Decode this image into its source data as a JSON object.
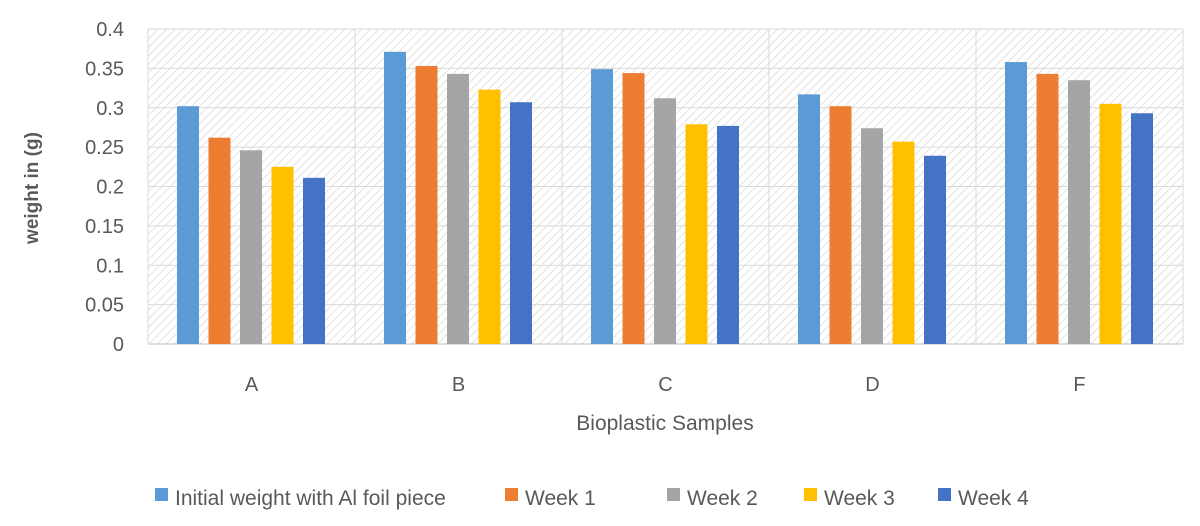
{
  "chart_data": {
    "type": "bar",
    "title": "",
    "xlabel": "Bioplastic Samples",
    "ylabel": "weight in (g)",
    "ylim": [
      0,
      0.4
    ],
    "yticks": [
      "0",
      "0.05",
      "0.1",
      "0.15",
      "0.2",
      "0.25",
      "0.3",
      "0.35",
      "0.4"
    ],
    "grid": true,
    "legend_position": "bottom",
    "categories": [
      "A",
      "B",
      "C",
      "D",
      "F"
    ],
    "series": [
      {
        "name": "Initial weight with Al foil piece",
        "color": "#5B9BD5",
        "values": [
          0.302,
          0.371,
          0.349,
          0.317,
          0.358
        ]
      },
      {
        "name": "Week 1",
        "color": "#ED7D31",
        "values": [
          0.262,
          0.353,
          0.344,
          0.302,
          0.343
        ]
      },
      {
        "name": "Week 2",
        "color": "#A5A5A5",
        "values": [
          0.246,
          0.343,
          0.312,
          0.274,
          0.335
        ]
      },
      {
        "name": "Week 3",
        "color": "#FFC000",
        "values": [
          0.225,
          0.323,
          0.279,
          0.257,
          0.305
        ]
      },
      {
        "name": "Week 4",
        "color": "#4472C4",
        "values": [
          0.211,
          0.307,
          0.277,
          0.239,
          0.293
        ]
      }
    ]
  }
}
